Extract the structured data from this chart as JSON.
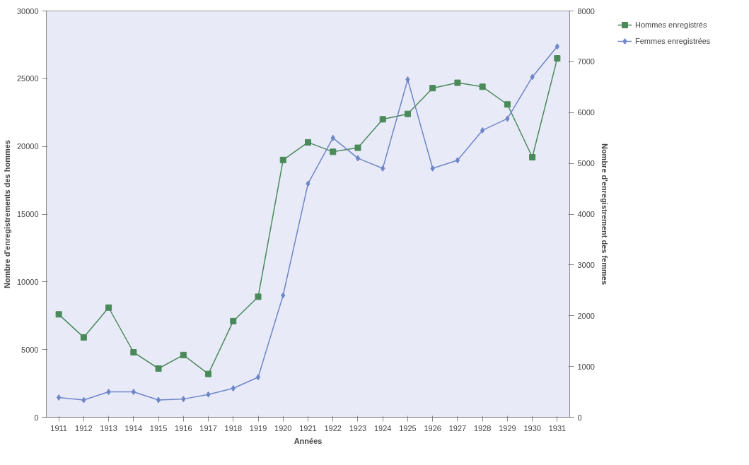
{
  "chart_data": {
    "type": "line",
    "xlabel": "Années",
    "ylabel": "Nombre d'enregistrements des hommes",
    "y2label": "Nombre d'enregistrement des femmes",
    "categories": [
      "1911",
      "1912",
      "1913",
      "1914",
      "1915",
      "1916",
      "1917",
      "1918",
      "1919",
      "1920",
      "1921",
      "1922",
      "1923",
      "1924",
      "1925",
      "1926",
      "1927",
      "1928",
      "1929",
      "1930",
      "1931"
    ],
    "series": [
      {
        "name": "Hommes enregistrés",
        "color": "#4a8a5a",
        "marker": "square",
        "values": [
          7600,
          5900,
          8100,
          4800,
          3600,
          4600,
          3200,
          7100,
          8900,
          19000,
          20300,
          19600,
          19900,
          22000,
          22400,
          24300,
          24700,
          24400,
          23100,
          19200,
          26500
        ]
      },
      {
        "name": "Femmes enregistrées",
        "color": "#6f86c8",
        "marker": "diamond",
        "axis": "y2",
        "values": [
          390,
          340,
          500,
          500,
          340,
          360,
          450,
          570,
          790,
          2400,
          4600,
          5500,
          5100,
          4900,
          6650,
          4900,
          5060,
          5650,
          5880,
          6700,
          7300
        ]
      }
    ],
    "ylim": [
      0,
      30000
    ],
    "yticks": [
      0,
      5000,
      10000,
      15000,
      20000,
      25000,
      30000
    ],
    "y2lim": [
      0,
      8000
    ],
    "y2ticks": [
      0,
      1000,
      2000,
      3000,
      4000,
      5000,
      6000,
      7000,
      8000
    ],
    "grid": false,
    "legend": "top right",
    "line_style": "solid"
  }
}
